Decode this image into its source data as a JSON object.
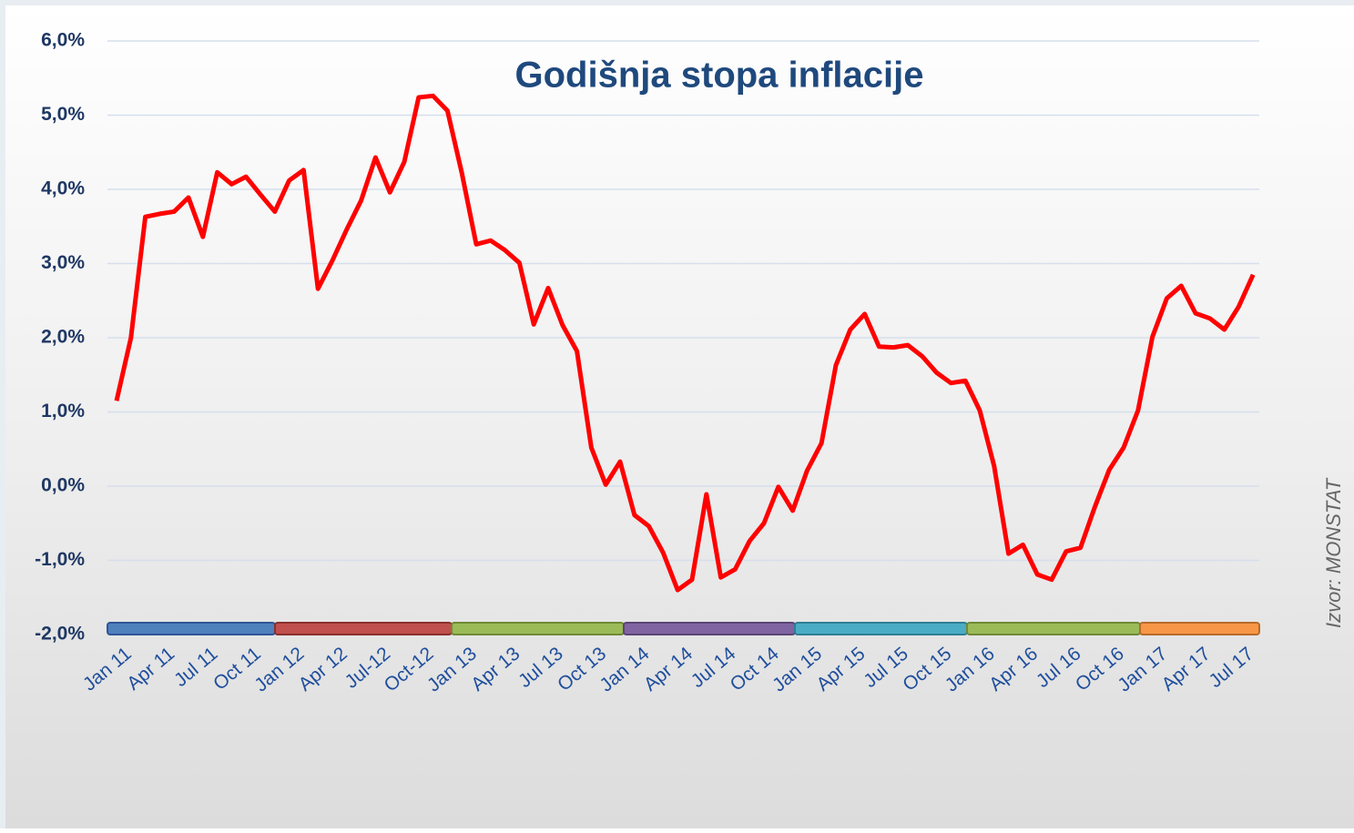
{
  "chart_data": {
    "type": "line",
    "title": "Godišnja stopa inflacije",
    "source": "Izvor: MONSTAT",
    "categories": [
      "Jan 11",
      null,
      null,
      "Apr 11",
      null,
      null,
      "Jul 11",
      null,
      null,
      "Oct 11",
      null,
      null,
      "Jan 12",
      null,
      null,
      "Apr 12",
      null,
      null,
      "Jul-12",
      null,
      null,
      "Oct-12",
      null,
      null,
      "Jan 13",
      null,
      null,
      "Apr 13",
      null,
      null,
      "Jul 13",
      null,
      null,
      "Oct 13",
      null,
      null,
      "Jan 14",
      null,
      null,
      "Apr 14",
      null,
      null,
      "Jul 14",
      null,
      null,
      "Oct 14",
      null,
      null,
      "Jan 15",
      null,
      null,
      "Apr 15",
      null,
      null,
      "Jul 15",
      null,
      null,
      "Oct 15",
      null,
      null,
      "Jan 16",
      null,
      null,
      "Apr 16",
      null,
      null,
      "Jul 16",
      null,
      null,
      "Oct 16",
      null,
      null,
      "Jan 17",
      null,
      null,
      "Apr 17",
      null,
      null,
      "Jul 17",
      null
    ],
    "series": [
      {
        "name": "Godišnja stopa inflacije",
        "color": "#ff0000",
        "values": [
          1.15,
          2.0,
          3.63,
          3.67,
          3.7,
          3.89,
          3.36,
          4.23,
          4.07,
          4.17,
          3.93,
          3.7,
          4.12,
          4.26,
          2.66,
          3.04,
          3.46,
          3.85,
          4.43,
          3.96,
          4.37,
          5.24,
          5.26,
          5.06,
          4.22,
          3.26,
          3.31,
          3.18,
          3.01,
          2.18,
          2.67,
          2.17,
          1.82,
          0.52,
          0.02,
          0.33,
          -0.39,
          -0.54,
          -0.9,
          -1.4,
          -1.26,
          -0.11,
          -1.23,
          -1.12,
          -0.74,
          -0.5,
          -0.01,
          -0.33,
          0.21,
          0.58,
          1.63,
          2.11,
          2.32,
          1.88,
          1.87,
          1.9,
          1.75,
          1.53,
          1.39,
          1.42,
          1.02,
          0.27,
          -0.91,
          -0.79,
          -1.19,
          -1.26,
          -0.88,
          -0.83,
          -0.28,
          0.22,
          0.52,
          1.02,
          2.01,
          2.53,
          2.7,
          2.33,
          2.26,
          2.11,
          2.42,
          2.85
        ]
      }
    ],
    "ylim": [
      -2,
      6
    ],
    "yticks": [
      {
        "value": -2,
        "label": "-2,0%"
      },
      {
        "value": -1,
        "label": "-1,0%"
      },
      {
        "value": 0,
        "label": "0,0%"
      },
      {
        "value": 1,
        "label": "1,0%"
      },
      {
        "value": 2,
        "label": "2,0%"
      },
      {
        "value": 3,
        "label": "3,0%"
      },
      {
        "value": 4,
        "label": "4,0%"
      },
      {
        "value": 5,
        "label": "5,0%"
      },
      {
        "value": 6,
        "label": "6,0%"
      }
    ],
    "grid": true
  }
}
